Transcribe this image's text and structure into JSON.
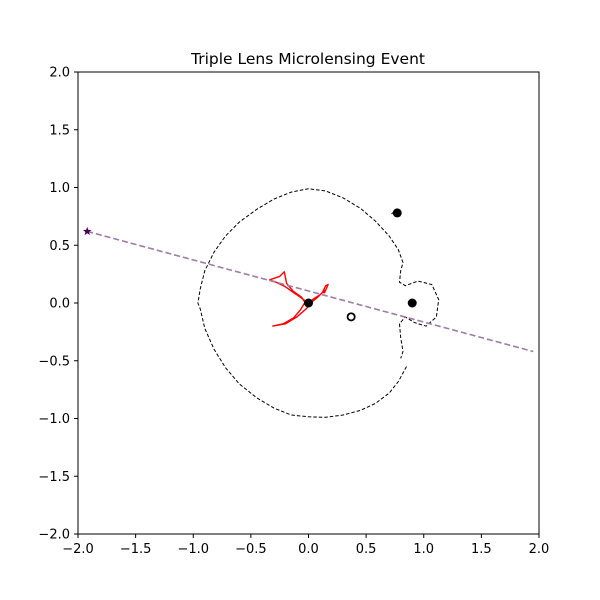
{
  "chart_data": {
    "type": "scatter",
    "title": "Triple Lens Microlensing Event",
    "xlabel": "",
    "ylabel": "",
    "xlim": [
      -2.0,
      2.0
    ],
    "ylim": [
      -2.0,
      2.0
    ],
    "xticks": [
      -2.0,
      -1.5,
      -1.0,
      -0.5,
      0.0,
      0.5,
      1.0,
      1.5,
      2.0
    ],
    "yticks": [
      -2.0,
      -1.5,
      -1.0,
      -0.5,
      0.0,
      0.5,
      1.0,
      1.5,
      2.0
    ],
    "xtick_labels": [
      "−2.0",
      "−1.5",
      "−1.0",
      "−0.5",
      "0.0",
      "0.5",
      "1.0",
      "1.5",
      "2.0"
    ],
    "ytick_labels": [
      "−2.0",
      "−1.5",
      "−1.0",
      "−0.5",
      "0.0",
      "0.5",
      "1.0",
      "1.5",
      "2.0"
    ],
    "grid": false,
    "legend": "none",
    "lenses": [
      {
        "x": 0.0,
        "y": 0.0
      },
      {
        "x": 0.9,
        "y": 0.0
      },
      {
        "x": 0.77,
        "y": 0.78
      }
    ],
    "open_marker": {
      "x": 0.37,
      "y": -0.12
    },
    "source_start": {
      "x": -1.92,
      "y": 0.62
    },
    "source_trajectory": {
      "x": [
        -1.92,
        1.95
      ],
      "y": [
        0.62,
        -0.42
      ]
    },
    "critical_curve_outer": {
      "x": [
        0.85,
        0.78,
        0.7,
        0.58,
        0.45,
        0.3,
        0.15,
        0.0,
        -0.15,
        -0.3,
        -0.45,
        -0.6,
        -0.72,
        -0.82,
        -0.9,
        -0.94,
        -0.96,
        -0.94,
        -0.9,
        -0.82,
        -0.72,
        -0.6,
        -0.45,
        -0.3,
        -0.15,
        0.0,
        0.15,
        0.3,
        0.45,
        0.58,
        0.7,
        0.78,
        0.82,
        0.8,
        0.79,
        0.84,
        0.95,
        1.07,
        1.13,
        1.11,
        1.02,
        0.92,
        0.84,
        0.79,
        0.8,
        0.82,
        0.8,
        0.77,
        0.74,
        0.72
      ],
      "y": [
        -0.55,
        -0.68,
        -0.78,
        -0.87,
        -0.93,
        -0.97,
        -0.99,
        -0.985,
        -0.97,
        -0.91,
        -0.82,
        -0.7,
        -0.56,
        -0.4,
        -0.22,
        -0.05,
        0.0,
        0.12,
        0.28,
        0.44,
        0.58,
        0.7,
        0.81,
        0.9,
        0.96,
        0.99,
        0.97,
        0.91,
        0.82,
        0.71,
        0.58,
        0.46,
        0.35,
        0.28,
        0.18,
        0.15,
        0.19,
        0.16,
        0.03,
        -0.12,
        -0.2,
        -0.17,
        -0.12,
        -0.18,
        -0.3,
        -0.42,
        -0.48,
        0.76,
        0.79,
        0.77
      ]
    },
    "caustic": {
      "x": [
        -0.34,
        -0.28,
        -0.2,
        -0.13,
        -0.07,
        -0.03,
        0.0,
        0.05,
        0.1,
        0.14,
        0.12,
        0.15,
        0.17,
        0.14,
        0.12,
        0.08,
        0.03,
        -0.02,
        -0.1,
        -0.2,
        -0.31,
        -0.22,
        -0.13,
        -0.07,
        -0.03,
        -0.06,
        -0.13,
        -0.19,
        -0.21,
        -0.25,
        -0.34
      ],
      "y": [
        0.2,
        0.18,
        0.14,
        0.09,
        0.05,
        0.02,
        0.005,
        0.04,
        0.07,
        0.11,
        0.09,
        0.15,
        0.16,
        0.09,
        0.09,
        0.05,
        0.01,
        -0.05,
        -0.12,
        -0.18,
        -0.2,
        -0.18,
        -0.13,
        -0.06,
        0.005,
        0.05,
        0.1,
        0.17,
        0.27,
        0.23,
        0.2
      ]
    },
    "colors": {
      "caustic": "#ff0000",
      "trajectory": "#a07aa8",
      "lens": "#000000",
      "source_marker": "#4b0055",
      "critical_curve": "#000000"
    }
  }
}
